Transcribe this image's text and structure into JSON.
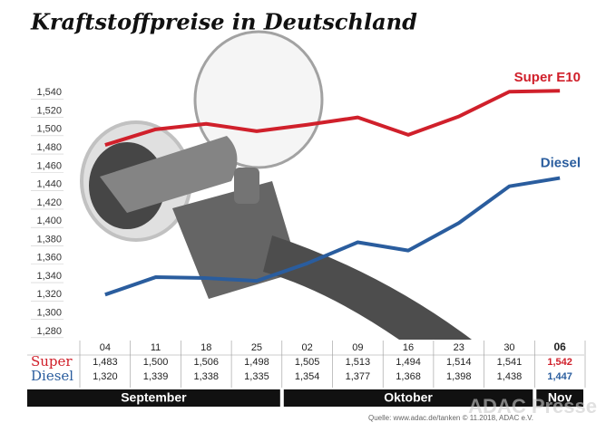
{
  "chart_data": {
    "type": "line",
    "title": "Kraftstoffpreise in Deutschland",
    "categories": [
      "04",
      "11",
      "18",
      "25",
      "02",
      "09",
      "16",
      "23",
      "30",
      "06"
    ],
    "series": [
      {
        "name": "Super E10",
        "row_label": "Super",
        "color": "#d0202b",
        "values": [
          1.483,
          1.5,
          1.506,
          1.498,
          1.505,
          1.513,
          1.494,
          1.514,
          1.541,
          1.542
        ],
        "value_labels": [
          "1,483",
          "1,500",
          "1,506",
          "1,498",
          "1,505",
          "1,513",
          "1,494",
          "1,514",
          "1,541",
          "1,542"
        ]
      },
      {
        "name": "Diesel",
        "row_label": "Diesel",
        "color": "#2a5d9e",
        "values": [
          1.32,
          1.339,
          1.338,
          1.335,
          1.354,
          1.377,
          1.368,
          1.398,
          1.438,
          1.447
        ],
        "value_labels": [
          "1,320",
          "1,339",
          "1,338",
          "1,335",
          "1,354",
          "1,377",
          "1,368",
          "1,398",
          "1,438",
          "1,447"
        ]
      }
    ],
    "months": [
      "September",
      "Oktober",
      "Nov"
    ],
    "ylim": [
      1.27,
      1.56
    ],
    "yticks": [
      {
        "value": 1.28,
        "label": "1,280"
      },
      {
        "value": 1.3,
        "label": "1,300"
      },
      {
        "value": 1.32,
        "label": "1,320"
      },
      {
        "value": 1.34,
        "label": "1,340"
      },
      {
        "value": 1.36,
        "label": "1,360"
      },
      {
        "value": 1.38,
        "label": "1,380"
      },
      {
        "value": 1.4,
        "label": "1,400"
      },
      {
        "value": 1.42,
        "label": "1,420"
      },
      {
        "value": 1.44,
        "label": "1,440"
      },
      {
        "value": 1.46,
        "label": "1,460"
      },
      {
        "value": 1.48,
        "label": "1,480"
      },
      {
        "value": 1.5,
        "label": "1,500"
      },
      {
        "value": 1.52,
        "label": "1,520"
      },
      {
        "value": 1.54,
        "label": "1,540"
      }
    ],
    "source": "Quelle: www.adac.de/tanken  © 11.2018, ADAC e.V.",
    "watermark": "ADAC Presse"
  }
}
